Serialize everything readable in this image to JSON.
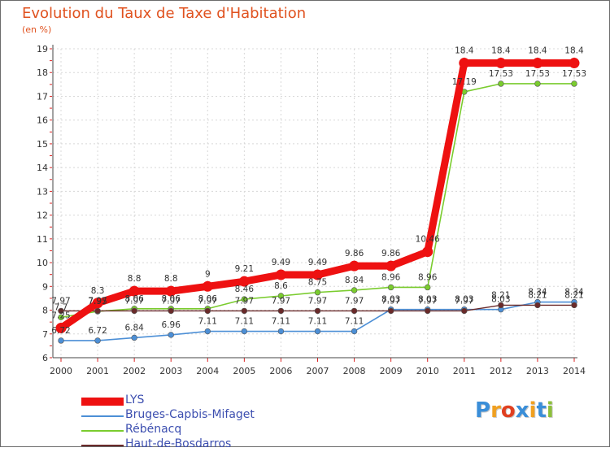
{
  "header": {
    "title": "Evolution du Taux de Taxe d'Habitation",
    "subtitle": "(en %)"
  },
  "logo": {
    "letters": [
      "P",
      "r",
      "o",
      "x",
      "i",
      "t",
      "i"
    ],
    "colors": [
      "#3a8ed8",
      "#f0a020",
      "#e04020",
      "#3a8ed8",
      "#f0a020",
      "#3a8ed8",
      "#8cbf3a"
    ]
  },
  "chart_data": {
    "type": "line",
    "title": "Evolution du Taux de Taxe d'Habitation",
    "ylabel": "(en %)",
    "xlabel": "",
    "x": [
      "2000",
      "2001",
      "2002",
      "2003",
      "2004",
      "2005",
      "2006",
      "2007",
      "2008",
      "2009",
      "2010",
      "2011",
      "2012",
      "2013",
      "2014"
    ],
    "ylim": [
      6,
      19
    ],
    "yticks": [
      "6",
      "7",
      "8",
      "9",
      "10",
      "11",
      "12",
      "13",
      "14",
      "15",
      "16",
      "17",
      "18",
      "19"
    ],
    "grid": true,
    "legend_position": "bottom-left",
    "series": [
      {
        "name": "LYS",
        "color": "#ee1111",
        "values": [
          7.25,
          8.3,
          8.8,
          8.8,
          9,
          9.21,
          9.49,
          9.49,
          9.86,
          9.86,
          10.46,
          18.4,
          18.4,
          18.4,
          18.4
        ],
        "labels": [
          "7.25",
          "8.3",
          "8.8",
          "8.8",
          "9",
          "9.21",
          "9.49",
          "9.49",
          "9.86",
          "9.86",
          "10.46",
          "18.4",
          "18.4",
          "18.4",
          "18.4"
        ]
      },
      {
        "name": "Bruges-Capbis-Mifaget",
        "color": "#4c8fd6",
        "values": [
          6.72,
          6.72,
          6.84,
          6.96,
          7.11,
          7.11,
          7.11,
          7.11,
          7.11,
          8.03,
          8.03,
          8.03,
          8.03,
          8.34,
          8.34
        ],
        "labels": [
          "6.72",
          "6.72",
          "6.84",
          "6.96",
          "7.11",
          "7.11",
          "7.11",
          "7.11",
          "7.11",
          "8.03",
          "8.03",
          "8.03",
          "8.03",
          "8.34",
          "8.34"
        ]
      },
      {
        "name": "Rébénacq",
        "color": "#7acc2e",
        "values": [
          7.7,
          7.95,
          8.06,
          8.06,
          8.06,
          8.46,
          8.6,
          8.75,
          8.84,
          8.96,
          8.96,
          17.19,
          17.53,
          17.53,
          17.53
        ],
        "labels": [
          "7.7",
          "7.95",
          "8.06",
          "8.06",
          "8.06",
          "8.46",
          "8.6",
          "8.75",
          "8.84",
          "8.96",
          "8.96",
          "17.19",
          "17.53",
          "17.53",
          "17.53"
        ]
      },
      {
        "name": "Haut-de-Bosdarros",
        "color": "#6a2a2a",
        "values": [
          7.97,
          7.97,
          7.97,
          7.97,
          7.97,
          7.97,
          7.97,
          7.97,
          7.97,
          7.97,
          7.97,
          7.97,
          8.21,
          8.21,
          8.21
        ],
        "labels": [
          "7.97",
          "7.97",
          "7.97",
          "7.97",
          "7.97",
          "7.97",
          "7.97",
          "7.97",
          "7.97",
          "7.97",
          "7.97",
          "7.97",
          "8.21",
          "8.21",
          "8.21"
        ]
      }
    ]
  }
}
